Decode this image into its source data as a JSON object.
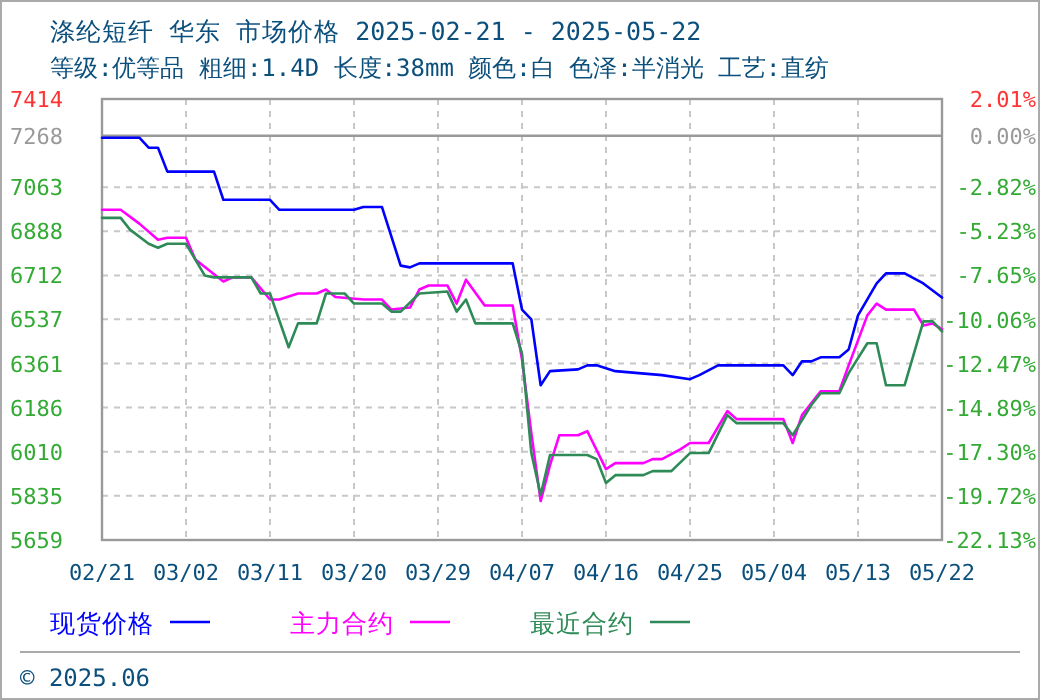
{
  "chart_data": {
    "type": "line",
    "title": "涤纶短纤 华东 市场价格 2025-02-21 - 2025-05-22",
    "subtitle": "等级:优等品 粗细:1.4D 长度:38mm 颜色:白 色泽:半消光 工艺:直纺",
    "annotations": [
      "© 2025.06"
    ],
    "xlim": [
      "--02-21",
      "--05-22"
    ],
    "xticks": [
      {
        "value": "--02-21",
        "label": "02/21"
      },
      {
        "value": "--03-02",
        "label": "03/02"
      },
      {
        "value": "--03-11",
        "label": "03/11"
      },
      {
        "value": "--03-20",
        "label": "03/20"
      },
      {
        "value": "--03-29",
        "label": "03/29"
      },
      {
        "value": "--04-07",
        "label": "04/07"
      },
      {
        "value": "--04-16",
        "label": "04/16"
      },
      {
        "value": "--04-25",
        "label": "04/25"
      },
      {
        "value": "--05-04",
        "label": "05/04"
      },
      {
        "value": "--05-13",
        "label": "05/13"
      },
      {
        "value": "--05-22",
        "label": "05/22"
      }
    ],
    "ylim": [
      5659,
      7414
    ],
    "yticks": [
      5659,
      5835,
      6010,
      6186,
      6361,
      6537,
      6712,
      6888,
      7063,
      7268,
      7414
    ],
    "y2lim": [
      -22.13,
      2.01
    ],
    "y2ticks": [
      {
        "value": -22.13,
        "label": "-22.13%"
      },
      {
        "value": -19.72,
        "label": "-19.72%"
      },
      {
        "value": -17.3,
        "label": "-17.30%"
      },
      {
        "value": -14.89,
        "label": "-14.89%"
      },
      {
        "value": -12.47,
        "label": "-12.47%"
      },
      {
        "value": -10.06,
        "label": "-10.06%"
      },
      {
        "value": -7.65,
        "label": "-7.65%"
      },
      {
        "value": -5.23,
        "label": "-5.23%"
      },
      {
        "value": -2.82,
        "label": "-2.82%"
      },
      {
        "value": 0,
        "label": "0.00%"
      },
      {
        "value": 2.01,
        "label": "2.01%"
      }
    ],
    "ref_lines": [
      {
        "axis": "y",
        "value": 7268,
        "color": "#999999",
        "line_style": "solid"
      }
    ],
    "grid": true,
    "legend": "bottom",
    "line_style": "solid",
    "marker": "none",
    "series": [
      {
        "name": "现货价格",
        "color": "#0000ff",
        "x": [
          "--02-21",
          "--02-25",
          "--02-26",
          "--02-27",
          "--02-28",
          "--03-05",
          "--03-06",
          "--03-11",
          "--03-12",
          "--03-20",
          "--03-21",
          "--03-23",
          "--03-25",
          "--03-26",
          "--03-27",
          "--04-06",
          "--04-07",
          "--04-08",
          "--04-09",
          "--04-10",
          "--04-13",
          "--04-14",
          "--04-15",
          "--04-17",
          "--04-22",
          "--04-25",
          "--04-26",
          "--04-28",
          "--05-05",
          "--05-06",
          "--05-07",
          "--05-08",
          "--05-09",
          "--05-11",
          "--05-12",
          "--05-13",
          "--05-15",
          "--05-16",
          "--05-18",
          "--05-20",
          "--05-22"
        ],
        "values": [
          7260,
          7260,
          7220,
          7220,
          7125,
          7125,
          7013,
          7013,
          6973,
          6973,
          6984,
          6984,
          6751,
          6744,
          6760,
          6760,
          6576,
          6537,
          6275,
          6331,
          6338,
          6354,
          6354,
          6331,
          6315,
          6299,
          6315,
          6354,
          6354,
          6315,
          6370,
          6370,
          6386,
          6386,
          6417,
          6553,
          6680,
          6720,
          6720,
          6680,
          6624
        ]
      },
      {
        "name": "主力合约",
        "color": "#ff00ff",
        "x": [
          "--02-21",
          "--02-23",
          "--02-25",
          "--02-27",
          "--02-28",
          "--03-02",
          "--03-03",
          "--03-06",
          "--03-07",
          "--03-09",
          "--03-11",
          "--03-12",
          "--03-14",
          "--03-16",
          "--03-17",
          "--03-18",
          "--03-21",
          "--03-23",
          "--03-24",
          "--03-26",
          "--03-27",
          "--03-28",
          "--03-30",
          "--03-31",
          "--04-01",
          "--04-03",
          "--04-06",
          "--04-07",
          "--04-08",
          "--04-09",
          "--04-10",
          "--04-11",
          "--04-13",
          "--04-14",
          "--04-16",
          "--04-17",
          "--04-20",
          "--04-21",
          "--04-22",
          "--04-24",
          "--04-25",
          "--04-27",
          "--04-29",
          "--04-30",
          "--05-05",
          "--05-06",
          "--05-07",
          "--05-09",
          "--05-11",
          "--05-12",
          "--05-14",
          "--05-15",
          "--05-16",
          "--05-19",
          "--05-20",
          "--05-21",
          "--05-22"
        ],
        "values": [
          6973,
          6973,
          6918,
          6854,
          6862,
          6862,
          6775,
          6688,
          6704,
          6704,
          6616,
          6616,
          6640,
          6640,
          6656,
          6626,
          6616,
          6616,
          6576,
          6584,
          6656,
          6672,
          6672,
          6600,
          6695,
          6592,
          6592,
          6378,
          6084,
          5814,
          5957,
          6076,
          6076,
          6092,
          5941,
          5965,
          5965,
          5981,
          5981,
          6021,
          6045,
          6045,
          6172,
          6140,
          6140,
          6045,
          6156,
          6251,
          6251,
          6354,
          6553,
          6600,
          6576,
          6576,
          6513,
          6521,
          6497
        ]
      },
      {
        "name": "最近合约",
        "color": "#2e8b57",
        "x": [
          "--02-21",
          "--02-23",
          "--02-24",
          "--02-26",
          "--02-27",
          "--02-28",
          "--03-02",
          "--03-04",
          "--03-05",
          "--03-09",
          "--03-10",
          "--03-11",
          "--03-13",
          "--03-14",
          "--03-16",
          "--03-17",
          "--03-19",
          "--03-20",
          "--03-23",
          "--03-24",
          "--03-25",
          "--03-27",
          "--03-30",
          "--03-31",
          "--04-01",
          "--04-02",
          "--04-06",
          "--04-07",
          "--04-08",
          "--04-09",
          "--04-10",
          "--04-14",
          "--04-15",
          "--04-16",
          "--04-17",
          "--04-20",
          "--04-21",
          "--04-23",
          "--04-25",
          "--04-27",
          "--04-29",
          "--04-30",
          "--05-05",
          "--05-06",
          "--05-08",
          "--05-09",
          "--05-11",
          "--05-12",
          "--05-14",
          "--05-15",
          "--05-16",
          "--05-18",
          "--05-20",
          "--05-21",
          "--05-22"
        ],
        "values": [
          6941,
          6941,
          6894,
          6838,
          6822,
          6838,
          6838,
          6712,
          6704,
          6704,
          6640,
          6640,
          6426,
          6521,
          6521,
          6640,
          6640,
          6600,
          6600,
          6568,
          6568,
          6640,
          6648,
          6568,
          6616,
          6521,
          6521,
          6402,
          6005,
          5838,
          5997,
          5997,
          5981,
          5886,
          5917,
          5917,
          5933,
          5933,
          6005,
          6005,
          6156,
          6124,
          6124,
          6076,
          6196,
          6243,
          6243,
          6323,
          6442,
          6442,
          6275,
          6275,
          6529,
          6529,
          6489
        ]
      }
    ]
  }
}
